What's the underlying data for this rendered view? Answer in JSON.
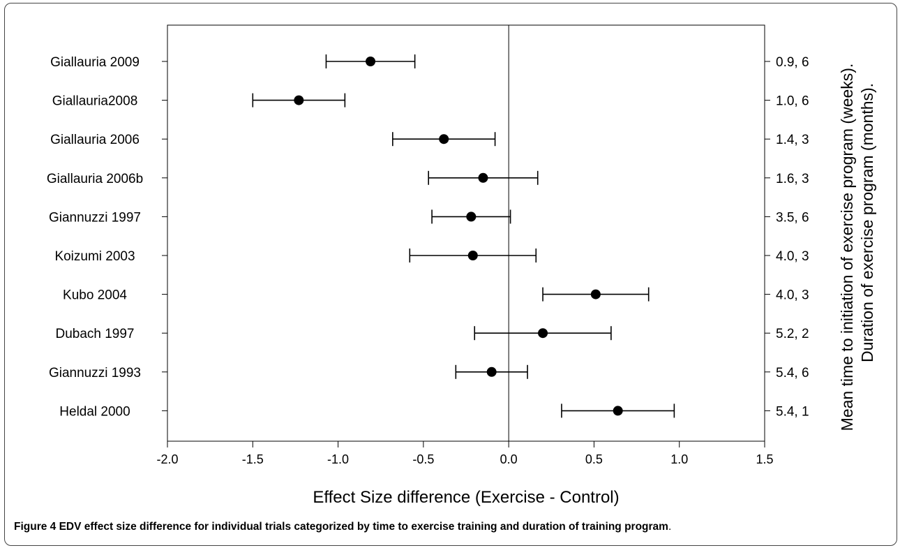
{
  "chart_data": {
    "type": "forest",
    "studies": [
      {
        "label": "Giallauria 2009",
        "right_label": "0.9, 6",
        "es": -0.81,
        "lo": -1.07,
        "hi": -0.55
      },
      {
        "label": "Giallauria2008",
        "right_label": "1.0, 6",
        "es": -1.23,
        "lo": -1.5,
        "hi": -0.96
      },
      {
        "label": "Giallauria 2006",
        "right_label": "1.4, 3",
        "es": -0.38,
        "lo": -0.68,
        "hi": -0.08
      },
      {
        "label": "Giallauria 2006b",
        "right_label": "1.6, 3",
        "es": -0.15,
        "lo": -0.47,
        "hi": 0.17
      },
      {
        "label": "Giannuzzi 1997",
        "right_label": "3.5, 6",
        "es": -0.22,
        "lo": -0.45,
        "hi": 0.01
      },
      {
        "label": "Koizumi 2003",
        "right_label": "4.0, 3",
        "es": -0.21,
        "lo": -0.58,
        "hi": 0.16
      },
      {
        "label": "Kubo 2004",
        "right_label": "4.0, 3",
        "es": 0.51,
        "lo": 0.2,
        "hi": 0.82
      },
      {
        "label": "Dubach 1997",
        "right_label": "5.2, 2",
        "es": 0.2,
        "lo": -0.2,
        "hi": 0.6
      },
      {
        "label": "Giannuzzi  1993",
        "right_label": "5.4, 6",
        "es": -0.1,
        "lo": -0.31,
        "hi": 0.11
      },
      {
        "label": "Heldal 2000",
        "right_label": "5.4, 1",
        "es": 0.64,
        "lo": 0.31,
        "hi": 0.97
      }
    ],
    "xlim": [
      -2.0,
      1.5
    ],
    "xticks": [
      "-2.0",
      "-1.5",
      "-1.0",
      "-0.5",
      "0.0",
      "0.5",
      "1.0",
      "1.5"
    ],
    "xlabel": "Effect Size difference (Exercise - Control)",
    "right_axis_label_1": "Mean time to initiation of exercise program (weeks).",
    "right_axis_label_2": "Duration of exercise program (months).",
    "reference_line": 0.0,
    "grid": false
  },
  "caption": {
    "bold": "Figure 4 EDV effect size difference for individual trials categorized by time to exercise training and duration of training program",
    "rest": "."
  }
}
